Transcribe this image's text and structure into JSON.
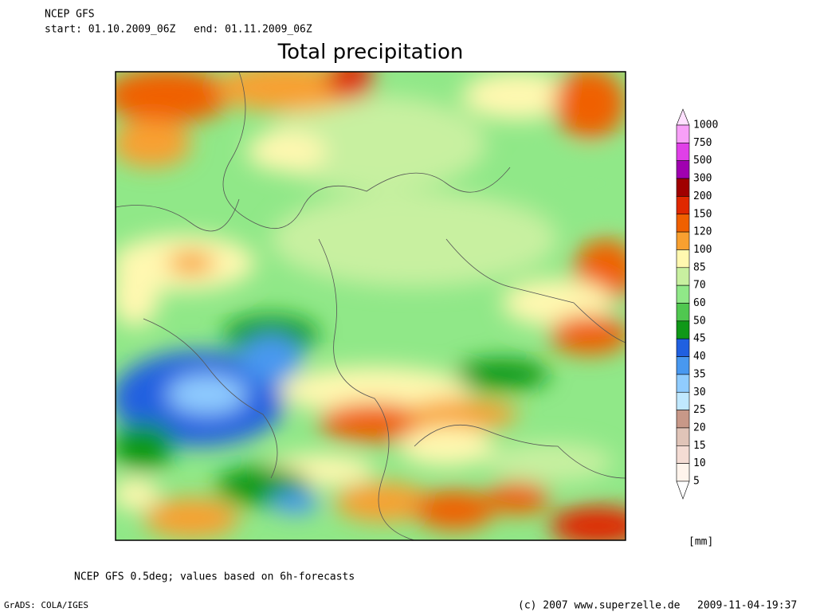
{
  "header": {
    "model": "NCEP GFS",
    "start": "start: 01.10.2009_06Z",
    "end": "end: 01.11.2009_06Z",
    "title": "Total precipitation"
  },
  "colorbar": {
    "unit": "[mm]",
    "levels": [
      1000,
      750,
      500,
      300,
      200,
      150,
      120,
      100,
      85,
      70,
      60,
      50,
      45,
      40,
      35,
      30,
      25,
      20,
      15,
      10,
      5
    ],
    "colors": [
      "#ffe0ff",
      "#f8a0f8",
      "#e040e8",
      "#a000b0",
      "#a00000",
      "#e02800",
      "#f06000",
      "#f8a030",
      "#fff8b0",
      "#c8f0a0",
      "#90e888",
      "#50c850",
      "#109818",
      "#2060e0",
      "#4898f0",
      "#90ccff",
      "#c0e8ff",
      "#c89888",
      "#e0c4b8",
      "#f4dcd4",
      "#fff4ec",
      "#ffffff"
    ]
  },
  "footer": {
    "note": "NCEP GFS 0.5deg; values based on 6h-forecasts",
    "software": "GrADS: COLA/IGES",
    "copyright": "(c) 2007 www.superzelle.de",
    "timestamp": "2009-11-04-19:37"
  }
}
